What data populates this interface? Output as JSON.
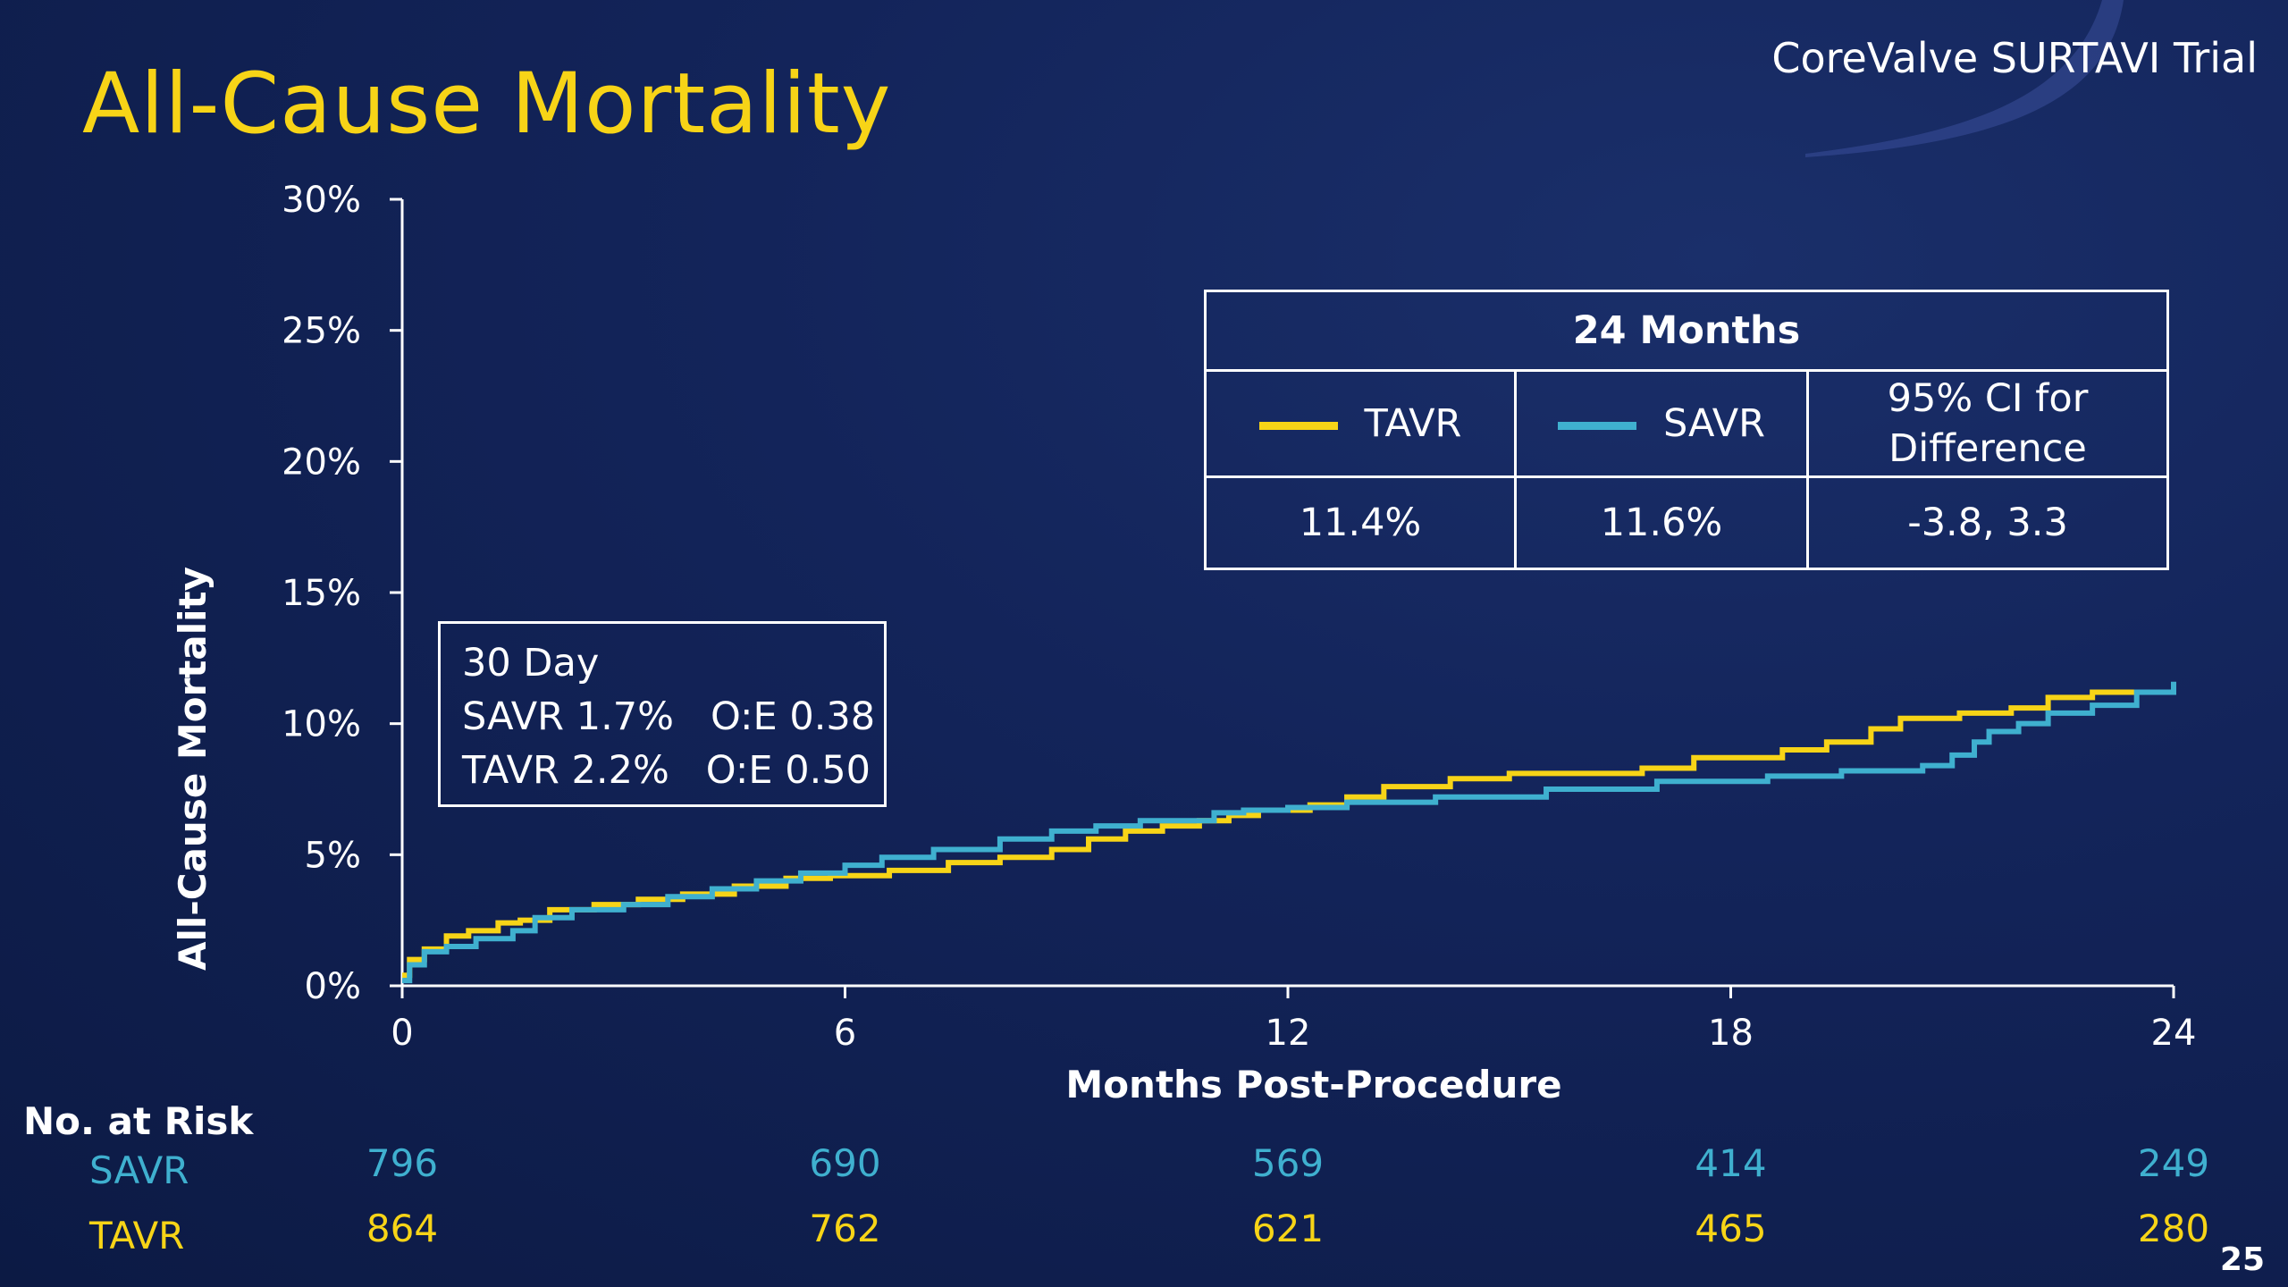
{
  "slide": {
    "title": "All-Cause Mortality",
    "brand": "CoreValve SURTAVI Trial",
    "page_number": "25"
  },
  "colors": {
    "tavr": "#f7d417",
    "savr": "#3fb0cf",
    "title": "#f7d417",
    "background": "#0f1f50"
  },
  "chart_data": {
    "type": "line",
    "xlabel": "Months Post-Procedure",
    "ylabel": "All-Cause Mortality",
    "xlim": [
      0,
      24
    ],
    "ylim": [
      0,
      30
    ],
    "x_ticks": [
      "0",
      "6",
      "12",
      "18",
      "24"
    ],
    "y_ticks": [
      "0%",
      "5%",
      "10%",
      "15%",
      "20%",
      "25%",
      "30%"
    ],
    "grid": false,
    "step": true,
    "series": [
      {
        "name": "TAVR",
        "color": "#f7d417",
        "x": [
          0,
          0.1,
          0.3,
          0.6,
          0.9,
          1.3,
          1.6,
          2.0,
          2.6,
          3.2,
          3.8,
          4.5,
          5.2,
          5.8,
          6.6,
          7.4,
          8.1,
          8.8,
          9.3,
          9.8,
          10.3,
          10.8,
          11.2,
          11.6,
          12.3,
          12.8,
          13.3,
          14.2,
          15.0,
          15.8,
          16.8,
          17.5,
          18.0,
          18.7,
          19.3,
          19.9,
          20.3,
          21.1,
          21.8,
          22.3,
          22.9,
          24.0
        ],
        "y": [
          0.4,
          1.0,
          1.4,
          1.9,
          2.1,
          2.4,
          2.5,
          2.9,
          3.1,
          3.3,
          3.5,
          3.8,
          4.1,
          4.2,
          4.4,
          4.7,
          4.9,
          5.2,
          5.6,
          5.9,
          6.1,
          6.3,
          6.5,
          6.7,
          6.9,
          7.2,
          7.6,
          7.9,
          8.1,
          8.1,
          8.3,
          8.7,
          8.7,
          9.0,
          9.3,
          9.8,
          10.2,
          10.4,
          10.6,
          11.0,
          11.2,
          11.4
        ]
      },
      {
        "name": "SAVR",
        "color": "#3fb0cf",
        "x": [
          0,
          0.1,
          0.3,
          0.6,
          1.0,
          1.5,
          1.8,
          2.3,
          3.0,
          3.6,
          4.2,
          4.8,
          5.4,
          6.0,
          6.5,
          7.2,
          8.1,
          8.8,
          9.4,
          10.0,
          11.0,
          11.4,
          12.0,
          12.8,
          14.0,
          15.5,
          17.0,
          18.5,
          19.5,
          20.6,
          21.0,
          21.3,
          21.5,
          21.9,
          22.3,
          22.9,
          23.5,
          24.0
        ],
        "y": [
          0.2,
          0.8,
          1.3,
          1.5,
          1.8,
          2.1,
          2.6,
          2.9,
          3.1,
          3.4,
          3.7,
          4.0,
          4.3,
          4.6,
          4.9,
          5.2,
          5.6,
          5.9,
          6.1,
          6.3,
          6.6,
          6.7,
          6.8,
          7.0,
          7.2,
          7.5,
          7.8,
          8.0,
          8.2,
          8.4,
          8.8,
          9.3,
          9.7,
          10.0,
          10.4,
          10.7,
          11.2,
          11.6
        ]
      }
    ]
  },
  "summary_table": {
    "header": "24 Months",
    "col_tavr": "TAVR",
    "col_savr": "SAVR",
    "col_ci_line1": "95% CI for",
    "col_ci_line2": "Difference",
    "val_tavr": "11.4%",
    "val_savr": "11.6%",
    "val_ci": "-3.8, 3.3"
  },
  "thirty_day_box": {
    "title": "30 Day",
    "savr_line": "SAVR 1.7%   O:E 0.38",
    "tavr_line": "TAVR 2.2%   O:E 0.50"
  },
  "risk_table": {
    "title": "No. at Risk",
    "savr_label": "SAVR",
    "tavr_label": "TAVR",
    "months": [
      0,
      6,
      12,
      18,
      24
    ],
    "savr": [
      "796",
      "690",
      "569",
      "414",
      "249"
    ],
    "tavr": [
      "864",
      "762",
      "621",
      "465",
      "280"
    ]
  }
}
